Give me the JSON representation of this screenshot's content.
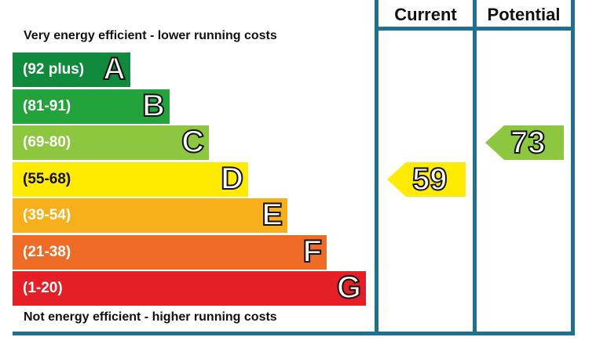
{
  "captions": {
    "top": "Very energy efficient - lower running costs",
    "bottom": "Not energy efficient - higher running costs"
  },
  "columns": {
    "current": "Current",
    "potential": "Potential"
  },
  "chart_data": {
    "type": "bar",
    "categories": [
      "A",
      "B",
      "C",
      "D",
      "E",
      "F",
      "G"
    ],
    "bands": [
      {
        "letter": "A",
        "range": "(92 plus)",
        "color": "#108a3c"
      },
      {
        "letter": "B",
        "range": "(81-91)",
        "color": "#23a33c"
      },
      {
        "letter": "C",
        "range": "(69-80)",
        "color": "#8dc63f"
      },
      {
        "letter": "D",
        "range": "(55-68)",
        "color": "#ffeb00"
      },
      {
        "letter": "E",
        "range": "(39-54)",
        "color": "#f8b01a"
      },
      {
        "letter": "F",
        "range": "(21-38)",
        "color": "#ef6c27"
      },
      {
        "letter": "G",
        "range": "(1-20)",
        "color": "#e41f26"
      }
    ],
    "series": [
      {
        "name": "Current",
        "value": 59,
        "band": "D",
        "color": "#ffeb00"
      },
      {
        "name": "Potential",
        "value": 73,
        "band": "C",
        "color": "#8dc63f"
      }
    ],
    "frame_color": "#1f6f91"
  }
}
